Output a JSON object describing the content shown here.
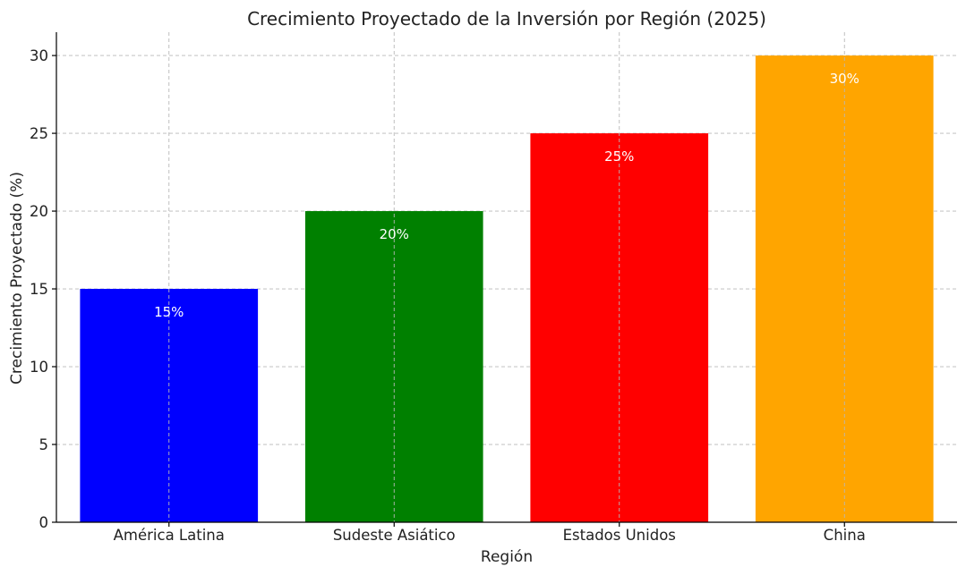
{
  "chart_data": {
    "type": "bar",
    "title": "Crecimiento Proyectado de la Inversión por Región (2025)",
    "xlabel": "Región",
    "ylabel": "Crecimiento Proyectado (%)",
    "categories": [
      "América Latina",
      "Sudeste Asiático",
      "Estados Unidos",
      "China"
    ],
    "values": [
      15,
      20,
      25,
      30
    ],
    "value_labels": [
      "15%",
      "20%",
      "25%",
      "30%"
    ],
    "colors": [
      "#0000ff",
      "#008000",
      "#ff0000",
      "#ffa500"
    ],
    "ylim": [
      0,
      31.5
    ],
    "yticks": [
      0,
      5,
      10,
      15,
      20,
      25,
      30
    ],
    "grid": true,
    "legend": "none"
  }
}
